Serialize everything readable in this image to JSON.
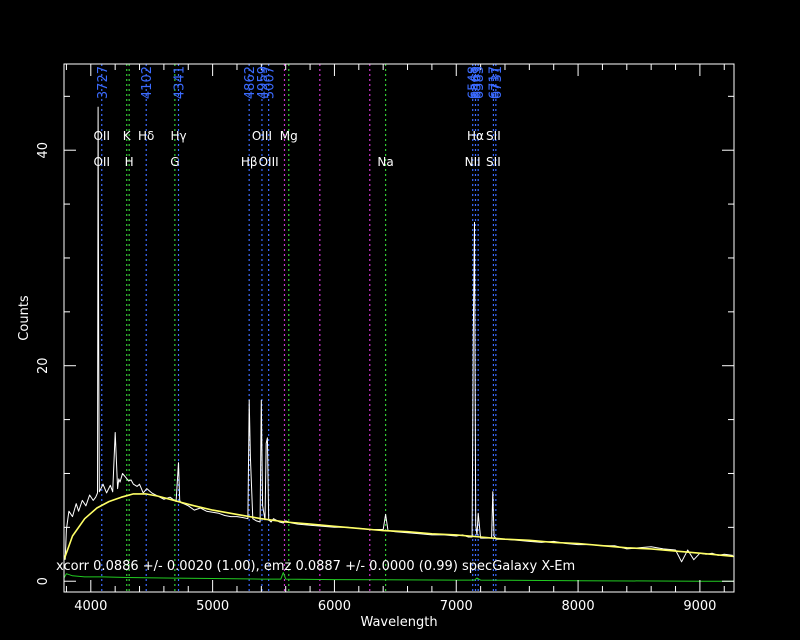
{
  "chart_data": {
    "type": "line",
    "title": "",
    "xlabel": "Wavelength",
    "ylabel": "Counts",
    "xlim": [
      3780,
      9280
    ],
    "ylim": [
      -1,
      48
    ],
    "x_ticks": [
      4000,
      5000,
      6000,
      7000,
      8000,
      9000
    ],
    "y_ticks": [
      0,
      20,
      40
    ],
    "legend": "none",
    "colors": {
      "background": "#000000",
      "axes": "#ffffff",
      "spectrum": "#ffffff",
      "fit": "#ffff66",
      "error": "#22cc22",
      "blue_line": "#3b6bff",
      "magenta_line": "#cc33cc",
      "green_line": "#33cc33"
    },
    "series": [
      {
        "name": "",
        "role": "spectrum",
        "x": [
          3790,
          3800,
          3820,
          3850,
          3880,
          3900,
          3930,
          3960,
          3990,
          4020,
          4040,
          4055,
          4060,
          4065,
          4070,
          4080,
          4100,
          4130,
          4160,
          4180,
          4200,
          4220,
          4230,
          4240,
          4260,
          4290,
          4310,
          4330,
          4350,
          4380,
          4400,
          4430,
          4460,
          4500,
          4550,
          4600,
          4650,
          4700,
          4720,
          4730,
          4740,
          4760,
          4800,
          4850,
          4900,
          4950,
          5000,
          5050,
          5100,
          5150,
          5200,
          5250,
          5290,
          5300,
          5310,
          5330,
          5360,
          5390,
          5400,
          5410,
          5430,
          5440,
          5450,
          5460,
          5480,
          5500,
          5550,
          5580,
          5600,
          5650,
          5700,
          5800,
          5900,
          6000,
          6100,
          6200,
          6300,
          6400,
          6420,
          6440,
          6500,
          6600,
          6700,
          6800,
          6900,
          7000,
          7050,
          7100,
          7130,
          7140,
          7150,
          7160,
          7170,
          7180,
          7200,
          7250,
          7290,
          7300,
          7310,
          7330,
          7400,
          7500,
          7600,
          7700,
          7800,
          7900,
          8000,
          8100,
          8200,
          8300,
          8400,
          8500,
          8600,
          8700,
          8800,
          8850,
          8900,
          8950,
          9000,
          9050,
          9100,
          9150,
          9200,
          9270
        ],
        "values": [
          2.0,
          4.8,
          6.5,
          6.0,
          7.2,
          6.5,
          7.5,
          7.0,
          8.0,
          7.5,
          7.8,
          8.2,
          44.0,
          21.5,
          8.3,
          8.5,
          9.0,
          8.2,
          8.9,
          8.3,
          13.8,
          8.6,
          9.5,
          9.2,
          10.0,
          9.6,
          9.3,
          9.4,
          9.0,
          8.8,
          9.0,
          8.2,
          8.6,
          8.2,
          7.9,
          7.6,
          7.8,
          7.4,
          11.0,
          7.5,
          7.3,
          7.2,
          7.0,
          6.6,
          6.8,
          6.5,
          6.4,
          6.3,
          6.1,
          6.0,
          6.0,
          5.9,
          5.8,
          16.8,
          11.5,
          5.8,
          5.6,
          5.5,
          16.8,
          7.0,
          5.7,
          12.8,
          13.3,
          5.7,
          5.5,
          5.8,
          5.5,
          5.4,
          5.6,
          5.4,
          5.3,
          5.2,
          5.1,
          5.0,
          5.0,
          4.9,
          4.8,
          4.8,
          6.2,
          4.7,
          4.6,
          4.5,
          4.4,
          4.3,
          4.3,
          4.2,
          4.3,
          4.1,
          4.1,
          23.0,
          33.3,
          5.2,
          4.3,
          6.3,
          4.0,
          4.0,
          4.0,
          8.3,
          4.2,
          3.9,
          3.9,
          3.8,
          3.7,
          3.6,
          3.7,
          3.5,
          3.4,
          3.4,
          3.3,
          3.3,
          3.0,
          3.1,
          3.2,
          3.0,
          2.9,
          1.8,
          2.9,
          2.0,
          2.6,
          2.5,
          2.6,
          2.4,
          2.5,
          2.4
        ]
      },
      {
        "name": "",
        "role": "fit",
        "x": [
          3780,
          3850,
          3950,
          4050,
          4150,
          4250,
          4350,
          4450,
          4550,
          4650,
          4750,
          4850,
          5000,
          5200,
          5400,
          5600,
          5800,
          6000,
          6200,
          6400,
          6600,
          6800,
          7000,
          7200,
          7400,
          7600,
          7800,
          8000,
          8200,
          8400,
          8600,
          8800,
          9000,
          9280
        ],
        "values": [
          2.0,
          4.2,
          5.8,
          6.8,
          7.4,
          7.8,
          8.1,
          8.1,
          7.9,
          7.6,
          7.3,
          7.0,
          6.6,
          6.2,
          5.8,
          5.5,
          5.3,
          5.1,
          4.9,
          4.7,
          4.6,
          4.4,
          4.3,
          4.1,
          3.9,
          3.8,
          3.6,
          3.5,
          3.3,
          3.1,
          3.0,
          2.8,
          2.6,
          2.3
        ]
      },
      {
        "name": "",
        "role": "error",
        "x": [
          3780,
          3800,
          3850,
          3950,
          4100,
          4300,
          4600,
          5000,
          5400,
          5560,
          5580,
          5600,
          6000,
          7000,
          7150,
          7170,
          7200,
          8000,
          9000,
          9280
        ],
        "values": [
          0.3,
          0.7,
          0.5,
          0.4,
          0.4,
          0.35,
          0.3,
          0.25,
          0.2,
          0.2,
          0.8,
          0.2,
          0.15,
          0.1,
          0.1,
          0.3,
          0.1,
          0.05,
          0.0,
          0.0
        ]
      }
    ],
    "lines": [
      {
        "x": 4090,
        "color": "blue",
        "label": "3727",
        "tag": "",
        "name_top": "OII",
        "name_bottom": "OII"
      },
      {
        "x": 4295,
        "color": "green",
        "label": "",
        "tag": "",
        "name_top": "K",
        "name_bottom": ""
      },
      {
        "x": 4315,
        "color": "green",
        "label": "",
        "tag": "",
        "name_top": "",
        "name_bottom": "H"
      },
      {
        "x": 4455,
        "color": "blue",
        "label": "4102",
        "tag": "",
        "name_top": "Hδ",
        "name_bottom": ""
      },
      {
        "x": 4690,
        "color": "green",
        "label": "",
        "tag": "",
        "name_top": "",
        "name_bottom": "G"
      },
      {
        "x": 4720,
        "color": "blue",
        "label": "4341",
        "tag": "",
        "name_top": "Hγ",
        "name_bottom": ""
      },
      {
        "x": 5300,
        "color": "blue",
        "label": "4862",
        "tag": "",
        "name_top": "",
        "name_bottom": "Hβ"
      },
      {
        "x": 5405,
        "color": "blue",
        "label": "4959",
        "tag": "",
        "name_top": "OIII",
        "name_bottom": ""
      },
      {
        "x": 5460,
        "color": "blue",
        "label": "5007",
        "tag": "",
        "name_top": "",
        "name_bottom": "OIII"
      },
      {
        "x": 5590,
        "color": "magenta",
        "label": "",
        "tag": "",
        "name_top": "",
        "name_bottom": ""
      },
      {
        "x": 5625,
        "color": "green",
        "label": "",
        "tag": "",
        "name_top": "Mg",
        "name_bottom": ""
      },
      {
        "x": 5880,
        "color": "magenta",
        "label": "",
        "tag": "",
        "name_top": "",
        "name_bottom": ""
      },
      {
        "x": 6290,
        "color": "magenta",
        "label": "",
        "tag": "",
        "name_top": "",
        "name_bottom": ""
      },
      {
        "x": 6420,
        "color": "green",
        "label": "",
        "tag": "",
        "name_top": "",
        "name_bottom": "Na"
      },
      {
        "x": 7135,
        "color": "blue",
        "label": "6548",
        "tag": "",
        "name_top": "",
        "name_bottom": "NII"
      },
      {
        "x": 7158,
        "color": "blue",
        "label": "6563",
        "tag": "",
        "name_top": "Hα",
        "name_bottom": ""
      },
      {
        "x": 7180,
        "color": "blue",
        "label": "6583",
        "tag": "",
        "name_top": "",
        "name_bottom": ""
      },
      {
        "x": 7305,
        "color": "blue",
        "label": "6717",
        "tag": "",
        "name_top": "SII",
        "name_bottom": "SII"
      },
      {
        "x": 7325,
        "color": "blue",
        "label": "6731",
        "tag": "",
        "name_top": "",
        "name_bottom": ""
      }
    ],
    "annotation": "xcorr  0.0886 +/- 0.0020 (1.00), emz  0.0887 +/- 0.0000 (0.99) specGalaxy X-Em"
  }
}
